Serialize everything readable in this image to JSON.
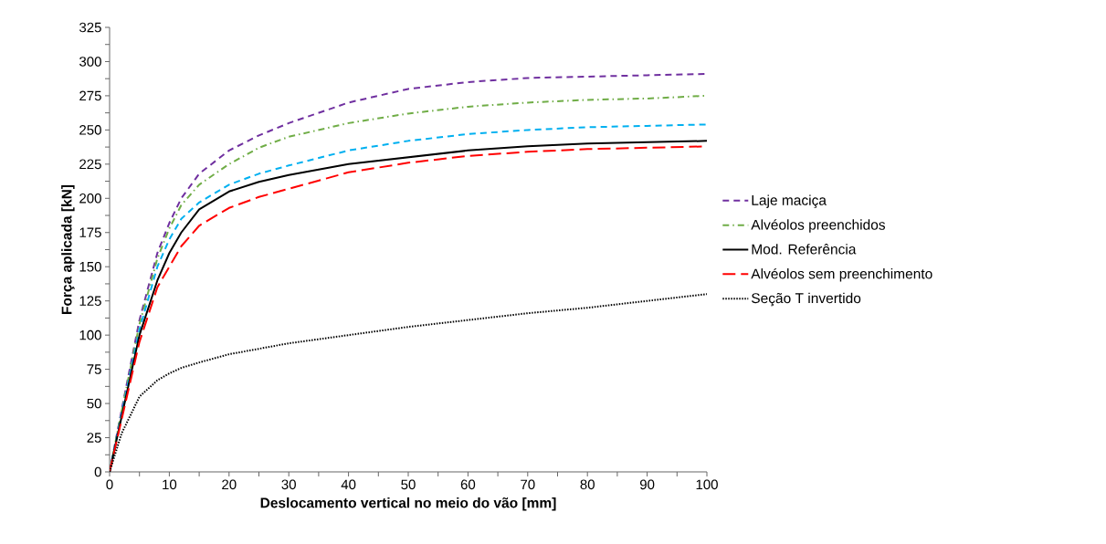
{
  "chart_data": {
    "type": "line",
    "xlabel": "Deslocamento vertical no meio do vão [mm]",
    "ylabel": "Força aplicada [kN]",
    "xlim": [
      0,
      100
    ],
    "xticks": [
      0,
      10,
      20,
      30,
      40,
      50,
      60,
      70,
      80,
      90,
      100
    ],
    "ylim": [
      0,
      325
    ],
    "yticks": [
      0,
      25,
      50,
      75,
      100,
      125,
      150,
      175,
      200,
      225,
      250,
      275,
      300,
      325
    ],
    "grid": false,
    "legend": "right",
    "marker": "none",
    "x": [
      0,
      2,
      5,
      8,
      10,
      12,
      15,
      20,
      25,
      30,
      40,
      50,
      60,
      70,
      80,
      90,
      100
    ],
    "series": [
      {
        "name": "Laje maciça",
        "color": "#7030a0",
        "line_style": "dashed",
        "values": [
          0,
          45,
          111,
          160,
          182,
          200,
          218,
          235,
          246,
          255,
          270,
          280,
          285,
          288,
          289,
          290,
          291
        ]
      },
      {
        "name": "Alvéolos preenchidos",
        "color": "#70ad47",
        "line_style": "dashdot",
        "values": [
          0,
          44,
          108,
          156,
          178,
          195,
          210,
          225,
          237,
          245,
          255,
          262,
          267,
          270,
          272,
          273,
          275
        ]
      },
      {
        "color": "#00b0f0",
        "line_style": "dashed",
        "values": [
          0,
          42,
          104,
          150,
          170,
          185,
          197,
          210,
          218,
          224,
          235,
          242,
          247,
          250,
          252,
          253,
          254
        ]
      },
      {
        "name": "Mod. Referência",
        "color": "#000000",
        "line_style": "solid",
        "values": [
          0,
          40,
          100,
          140,
          160,
          175,
          192,
          205,
          212,
          217,
          225,
          230,
          235,
          238,
          240,
          241,
          242
        ]
      },
      {
        "name": "Alvéolos sem preenchimento",
        "color": "#ff0000",
        "line_style": "longdashed",
        "values": [
          0,
          38,
          95,
          135,
          150,
          165,
          180,
          193,
          201,
          207,
          219,
          226,
          231,
          234,
          236,
          237,
          238
        ]
      },
      {
        "name": "Seção T invertido",
        "color": "#000000",
        "line_style": "dotted",
        "values": [
          0,
          28,
          55,
          67,
          72,
          76,
          80,
          86,
          90,
          94,
          100,
          106,
          111,
          116,
          120,
          125,
          130
        ]
      }
    ]
  }
}
